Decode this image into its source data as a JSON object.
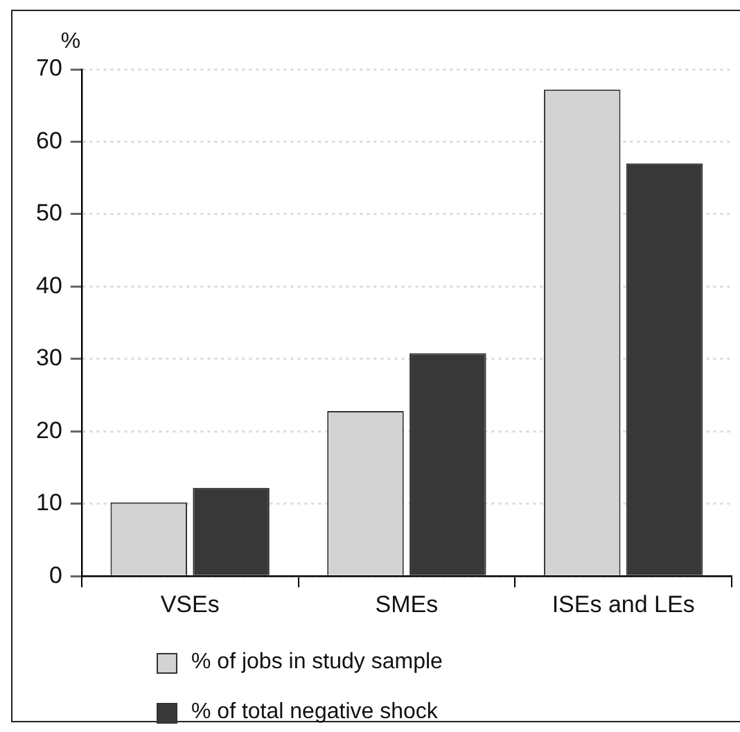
{
  "chart_data": {
    "type": "bar",
    "ylabel": "%",
    "categories": [
      "VSEs",
      "SMEs",
      "ISEs and LEs"
    ],
    "series": [
      {
        "name": "% of jobs in study sample",
        "color": "#d3d3d3",
        "values": [
          10.2,
          22.8,
          67.2
        ]
      },
      {
        "name": "% of total negative shock",
        "color": "#383838",
        "values": [
          12.2,
          30.8,
          57.0
        ]
      }
    ],
    "ylim": [
      0,
      70
    ],
    "yticks": [
      0,
      10,
      20,
      30,
      40,
      50,
      60,
      70
    ],
    "grid": "y",
    "legend": "bottom"
  }
}
